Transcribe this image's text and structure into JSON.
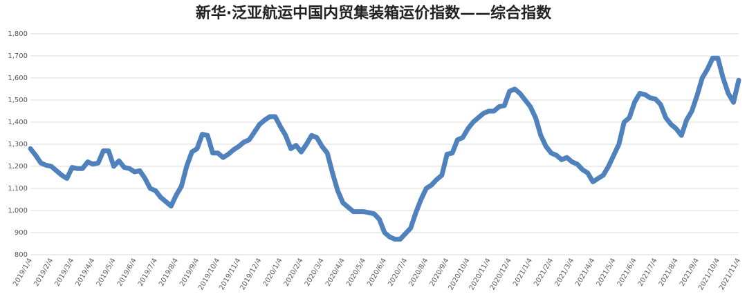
{
  "chart_data": {
    "type": "line",
    "title": "新华·泛亚航运中国内贸集装箱运价指数——综合指数",
    "categories": [
      "2019/1/4",
      null,
      null,
      null,
      "2019/2/4",
      null,
      null,
      null,
      "2019/3/4",
      null,
      null,
      null,
      "2019/4/4",
      null,
      null,
      null,
      "2019/5/4",
      null,
      null,
      null,
      "2019/6/4",
      null,
      null,
      null,
      "2019/7/4",
      null,
      null,
      null,
      "2019/8/4",
      null,
      null,
      null,
      "2019/9/4",
      null,
      null,
      null,
      "2019/10/4",
      null,
      null,
      null,
      "2019/11/4",
      null,
      null,
      null,
      "2019/12/4",
      null,
      null,
      null,
      "2020/1/4",
      null,
      null,
      null,
      "2020/2/4",
      null,
      null,
      null,
      "2020/3/4",
      null,
      null,
      null,
      "2020/4/4",
      null,
      null,
      null,
      "2020/5/4",
      null,
      null,
      null,
      "2020/6/4",
      null,
      null,
      null,
      "2020/7/4",
      null,
      null,
      null,
      "2020/8/4",
      null,
      null,
      null,
      "2020/9/4",
      null,
      null,
      null,
      "2020/10/4",
      null,
      null,
      null,
      "2020/11/4",
      null,
      null,
      null,
      "2020/12/4",
      null,
      null,
      null,
      "2021/1/4",
      null,
      null,
      null,
      "2021/2/4",
      null,
      null,
      null,
      "2021/3/4",
      null,
      null,
      null,
      "2021/4/4",
      null,
      null,
      null,
      "2021/5/4",
      null,
      null,
      null,
      "2021/6/4",
      null,
      null,
      null,
      "2021/7/4",
      null,
      null,
      null,
      "2021/8/4",
      null,
      null,
      null,
      "2021/9/4",
      null,
      null,
      null,
      "2021/10/4",
      null,
      null,
      null,
      "2021/11/4"
    ],
    "values": [
      1280,
      1250,
      1215,
      1205,
      1200,
      1180,
      1160,
      1145,
      1195,
      1190,
      1190,
      1220,
      1210,
      1215,
      1270,
      1270,
      1200,
      1225,
      1195,
      1190,
      1175,
      1180,
      1145,
      1100,
      1090,
      1060,
      1040,
      1020,
      1070,
      1110,
      1200,
      1265,
      1280,
      1345,
      1340,
      1260,
      1260,
      1240,
      1255,
      1275,
      1290,
      1310,
      1320,
      1355,
      1390,
      1410,
      1425,
      1425,
      1380,
      1340,
      1280,
      1295,
      1265,
      1300,
      1340,
      1330,
      1290,
      1260,
      1170,
      1090,
      1035,
      1015,
      995,
      995,
      995,
      990,
      985,
      960,
      900,
      880,
      870,
      870,
      895,
      920,
      990,
      1050,
      1100,
      1115,
      1140,
      1160,
      1255,
      1260,
      1320,
      1330,
      1370,
      1400,
      1420,
      1440,
      1450,
      1450,
      1470,
      1475,
      1540,
      1550,
      1530,
      1500,
      1470,
      1420,
      1340,
      1290,
      1260,
      1250,
      1230,
      1240,
      1220,
      1210,
      1185,
      1170,
      1130,
      1145,
      1160,
      1200,
      1250,
      1300,
      1400,
      1420,
      1490,
      1530,
      1525,
      1510,
      1505,
      1480,
      1420,
      1390,
      1370,
      1340,
      1410,
      1450,
      1520,
      1600,
      1640,
      1690,
      1690,
      1600,
      1530,
      1490,
      1590
    ],
    "color": "#4f81bd",
    "ylim": [
      800,
      1800
    ],
    "yticks": [
      800,
      900,
      {
        "value": 1000,
        "label": "1,000"
      },
      {
        "value": 1100,
        "label": "1,100"
      },
      {
        "value": 1200,
        "label": "1,200"
      },
      {
        "value": 1300,
        "label": "1,300"
      },
      {
        "value": 1400,
        "label": "1,400"
      },
      {
        "value": 1500,
        "label": "1,500"
      },
      {
        "value": 1600,
        "label": "1,600"
      },
      {
        "value": 1700,
        "label": "1,700"
      },
      {
        "value": 1800,
        "label": "1,800"
      }
    ],
    "grid": true
  }
}
